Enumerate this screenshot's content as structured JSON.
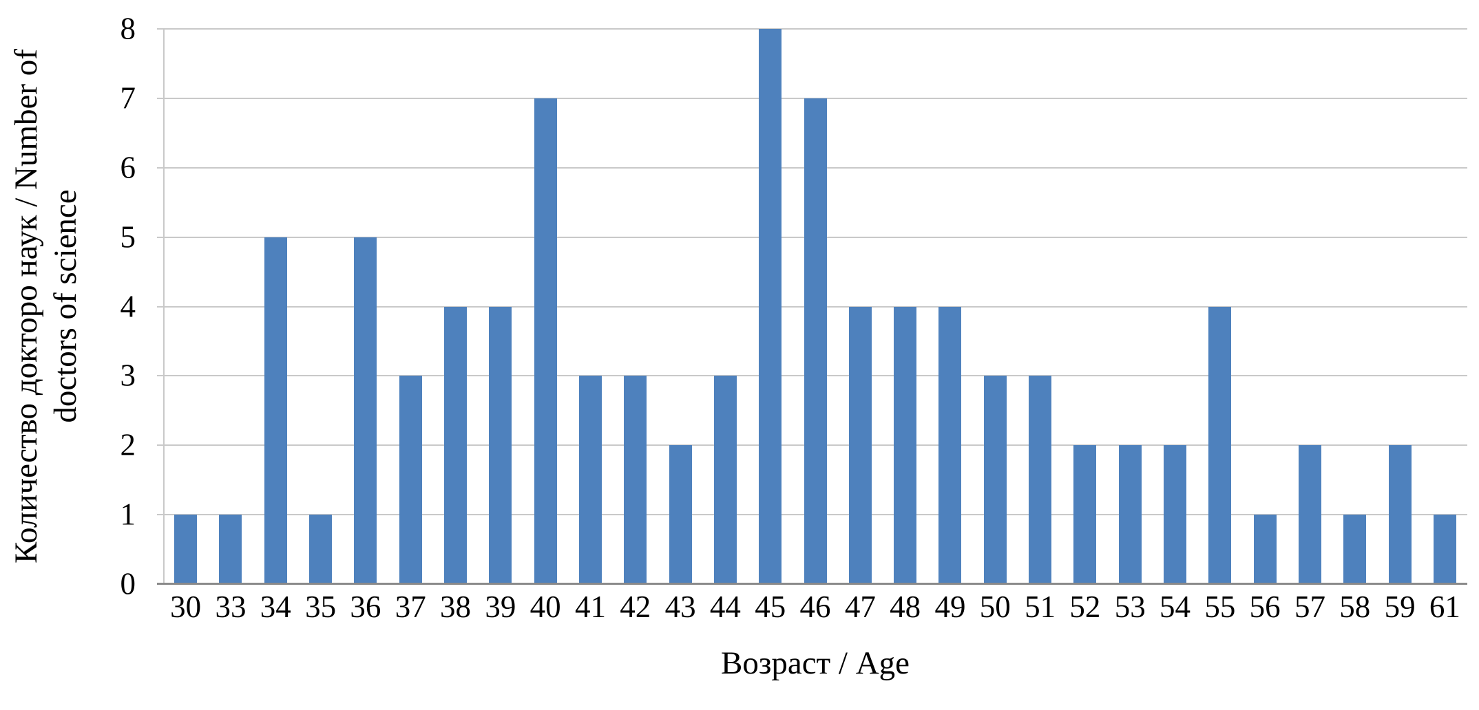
{
  "chart_data": {
    "type": "bar",
    "title": "",
    "categories": [
      "30",
      "33",
      "34",
      "35",
      "36",
      "37",
      "38",
      "39",
      "40",
      "41",
      "42",
      "43",
      "44",
      "45",
      "46",
      "47",
      "48",
      "49",
      "50",
      "51",
      "52",
      "53",
      "54",
      "55",
      "56",
      "57",
      "58",
      "59",
      "61"
    ],
    "values": [
      1,
      1,
      5,
      1,
      5,
      3,
      4,
      4,
      7,
      3,
      3,
      2,
      3,
      8,
      7,
      4,
      4,
      4,
      3,
      3,
      2,
      2,
      2,
      4,
      1,
      2,
      1,
      2,
      1
    ],
    "xlabel": "Возраст / Age",
    "ylabel": "Количество докторо наук / Number of doctors of science",
    "ylabel_lines": [
      "Количество докторо наук / Number of",
      "doctors of science"
    ],
    "ylim": [
      0,
      8
    ],
    "yticks": [
      0,
      1,
      2,
      3,
      4,
      5,
      6,
      7,
      8
    ],
    "grid": "horizontal",
    "legend": "none",
    "bar_color": "#4E81BD",
    "gridline_color": "#C9C9C9",
    "axis_line_color": "#8A8A8A",
    "text_color": "#000000",
    "background_color": "#FFFFFF"
  }
}
